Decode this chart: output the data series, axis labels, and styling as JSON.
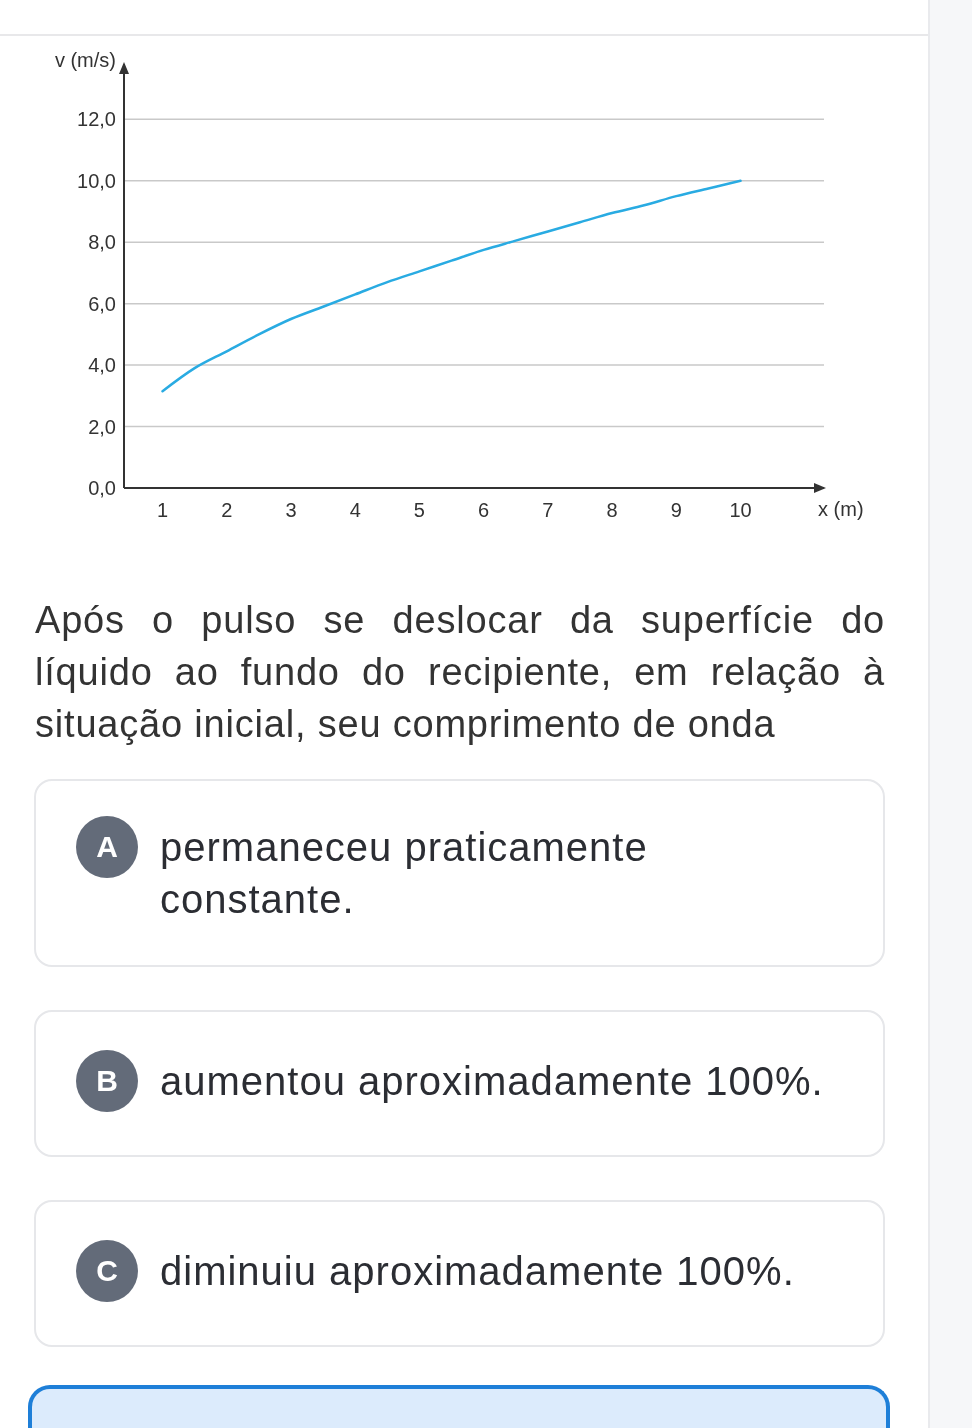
{
  "chart_data": {
    "type": "line",
    "xlabel": "x (m)",
    "ylabel": "v (m/s)",
    "x": [
      1,
      1.5,
      2,
      2.5,
      3,
      3.5,
      4,
      4.5,
      5,
      5.5,
      6,
      6.5,
      7,
      7.5,
      8,
      8.5,
      9,
      9.5,
      10
    ],
    "values": [
      3.15,
      3.9,
      4.45,
      5.0,
      5.5,
      5.9,
      6.3,
      6.7,
      7.05,
      7.4,
      7.75,
      8.05,
      8.35,
      8.65,
      8.95,
      9.2,
      9.5,
      9.75,
      10.0
    ],
    "color": "#29abe2",
    "xlim": [
      0.4,
      11.3
    ],
    "ylim": [
      0,
      13.8
    ],
    "xticks": [
      1,
      2,
      3,
      4,
      5,
      6,
      7,
      8,
      9,
      10
    ],
    "yticks": [
      {
        "value": 0,
        "label": "0,0"
      },
      {
        "value": 2,
        "label": "2,0"
      },
      {
        "value": 4,
        "label": "4,0"
      },
      {
        "value": 6,
        "label": "6,0"
      },
      {
        "value": 8,
        "label": "8,0"
      },
      {
        "value": 10,
        "label": "10,0"
      },
      {
        "value": 12,
        "label": "12,0"
      }
    ],
    "grid": "y",
    "marker": "none",
    "line_style": "solid",
    "annotations": [
      "Após o pulso se deslocar da superfície do líquido ao fundo do recipiente, em relação à situação inicial, seu comprimento de onda",
      "A",
      "permaneceu praticamente constante.",
      "B",
      "aumentou aproximadamente 100%.",
      "C",
      "diminuiu aproximadamente 100%."
    ]
  }
}
